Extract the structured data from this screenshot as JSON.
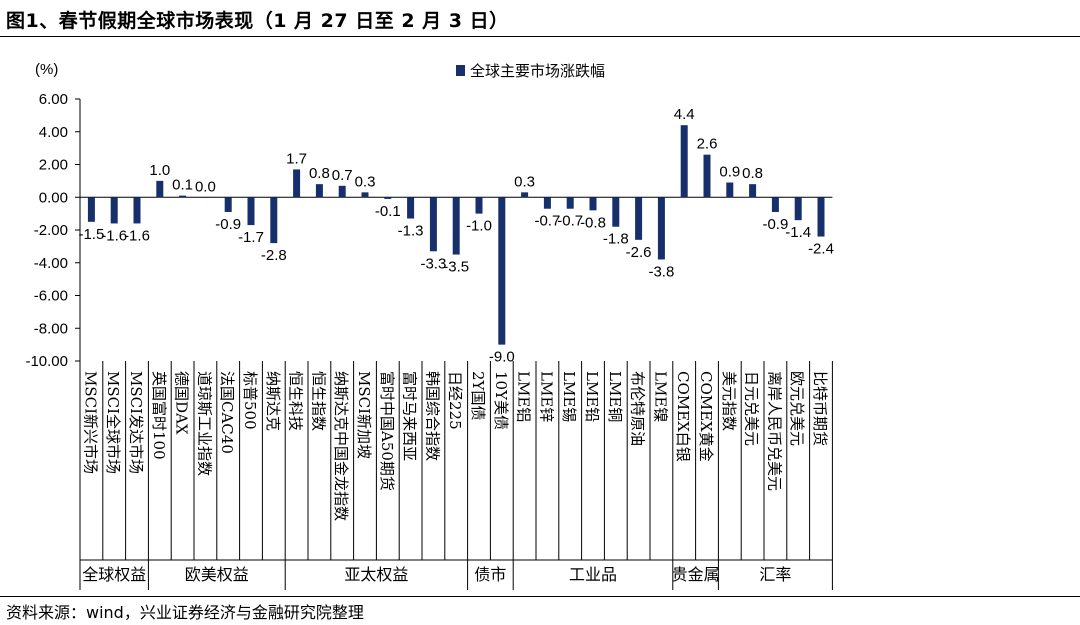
{
  "header": {
    "title": "图1、春节假期全球市场表现（1 月 27 日至 2 月 3 日）"
  },
  "footer": {
    "source": "资料来源：wind，兴业证券经济与金融研究院整理"
  },
  "colors": {
    "bar": "#17306b",
    "axis": "#000000"
  },
  "chart_data": {
    "type": "bar",
    "ylabel": "(%)",
    "ylim": [
      -10,
      6
    ],
    "yticks": [
      "6.00",
      "4.00",
      "2.00",
      "0.00",
      "-2.00",
      "-4.00",
      "-6.00",
      "-8.00",
      "-10.00"
    ],
    "grid": false,
    "legend": "top-center",
    "series": [
      {
        "name": "全球主要市场涨跌幅",
        "values": [
          -1.5,
          -1.6,
          -1.6,
          1.0,
          0.1,
          0.0,
          -0.9,
          -1.7,
          -2.8,
          1.7,
          0.8,
          0.7,
          0.3,
          -0.1,
          -1.3,
          -3.3,
          -3.5,
          -1.0,
          -9.0,
          0.3,
          -0.7,
          -0.7,
          -0.8,
          -1.8,
          -2.6,
          -3.8,
          4.4,
          2.6,
          0.9,
          0.8,
          -0.9,
          -1.4,
          -2.4
        ],
        "labels": [
          "-1.5",
          "-1.6",
          "-1.6",
          "1.0",
          "0.1",
          "0.0",
          "-0.9",
          "-1.7",
          "-2.8",
          "1.7",
          "0.8",
          "0.7",
          "0.3",
          "-0.1",
          "-1.3",
          "-3.3",
          "-3.5",
          "-1.0",
          "-9.0",
          "0.3",
          "-0.7",
          "-0.7",
          "-0.8",
          "-1.8",
          "-2.6",
          "-3.8",
          "4.4",
          "2.6",
          "0.9",
          "0.8",
          "-0.9",
          "-1.4",
          "-2.4"
        ]
      }
    ],
    "categories": [
      "MSCI新兴市场",
      "MSCI全球市场",
      "MSCI发达市场",
      "英国富时100",
      "德国DAX",
      "道琼斯工业指数",
      "法国CAC40",
      "标普500",
      "纳斯达克",
      "恒生科技",
      "恒生指数",
      "纳斯达克中国金龙指数",
      "MSCI新加坡",
      "富时中国A50期货",
      "富时马来西亚",
      "韩国综合指数",
      "日经225",
      "2Y国债",
      "10Y美债",
      "LME铝",
      "LME锌",
      "LME锡",
      "LME铅",
      "LME铜",
      "布伦特原油",
      "LME镍",
      "COMEX白银",
      "COMEX黄金",
      "美元指数",
      "日元兑美元",
      "离岸人民币兑美元",
      "欧元兑美元",
      "比特币期货"
    ],
    "groups": [
      {
        "label": "全球权益",
        "count": 3
      },
      {
        "label": "欧美权益",
        "count": 6
      },
      {
        "label": "亚太权益",
        "count": 8
      },
      {
        "label": "债市",
        "count": 2
      },
      {
        "label": "工业品",
        "count": 7
      },
      {
        "label": "贵金属",
        "count": 2
      },
      {
        "label": "汇率",
        "count": 5
      }
    ]
  }
}
